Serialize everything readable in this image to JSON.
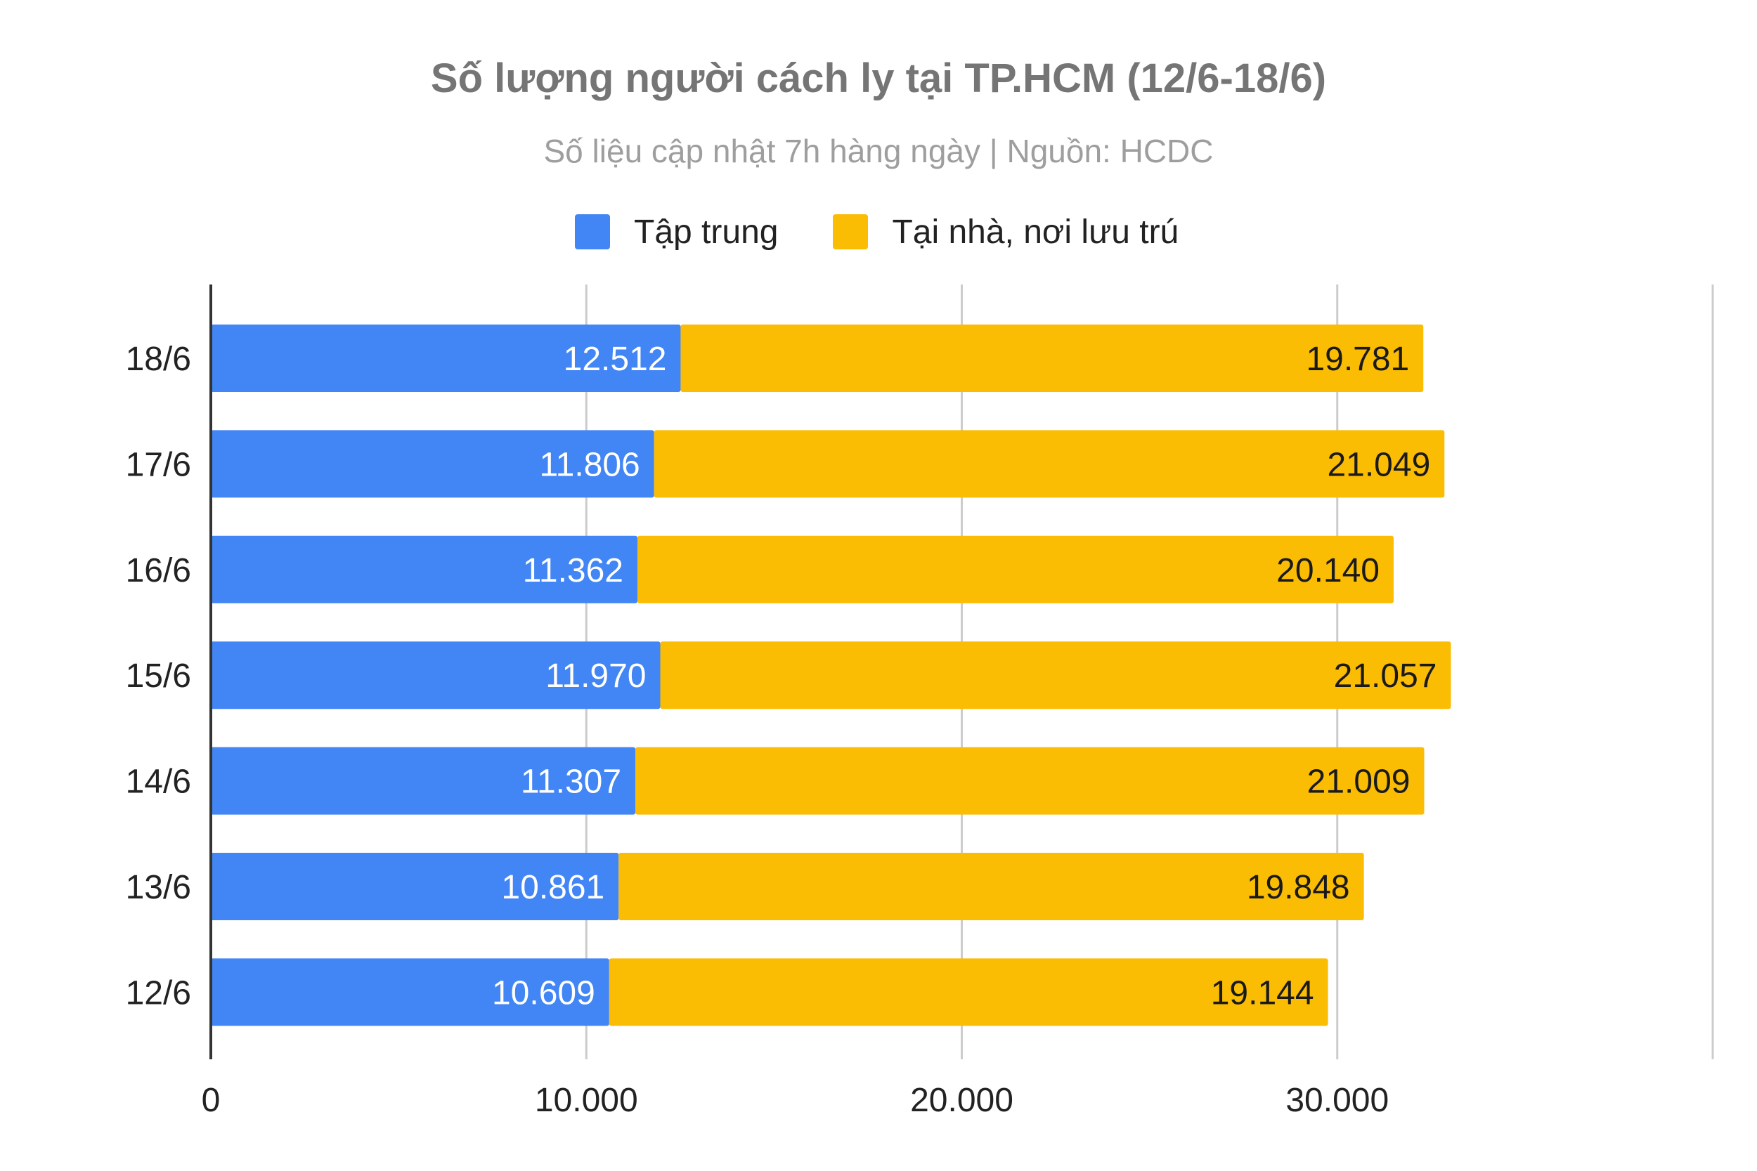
{
  "chart_data": {
    "type": "bar",
    "orientation": "horizontal",
    "stacked": true,
    "title": "Số lượng người cách ly tại TP.HCM (12/6-18/6)",
    "subtitle": "Số liệu cập nhật 7h hàng ngày | Nguồn: HCDC",
    "categories": [
      "18/6",
      "17/6",
      "16/6",
      "15/6",
      "14/6",
      "13/6",
      "12/6"
    ],
    "series": [
      {
        "name": "Tập trung",
        "color": "#4285f4",
        "label_color": "#ffffff",
        "values": [
          12512,
          11806,
          11362,
          11970,
          11307,
          10861,
          10609
        ],
        "labels": [
          "12.512",
          "11.806",
          "11.362",
          "11.970",
          "11.307",
          "10.861",
          "10.609"
        ]
      },
      {
        "name": "Tại nhà, nơi lưu trú",
        "color": "#fbbc04",
        "label_color": "#1a1a1a",
        "values": [
          19781,
          21049,
          20140,
          21057,
          21009,
          19848,
          19144
        ],
        "labels": [
          "19.781",
          "21.049",
          "20.140",
          "21.057",
          "21.009",
          "19.848",
          "19.144"
        ]
      }
    ],
    "xlim": [
      0,
      40000
    ],
    "xticks": [
      0,
      10000,
      20000,
      30000
    ],
    "xtick_labels": [
      "0",
      "10.000",
      "20.000",
      "30.000"
    ],
    "grid": true,
    "legend_position": "top-center"
  }
}
